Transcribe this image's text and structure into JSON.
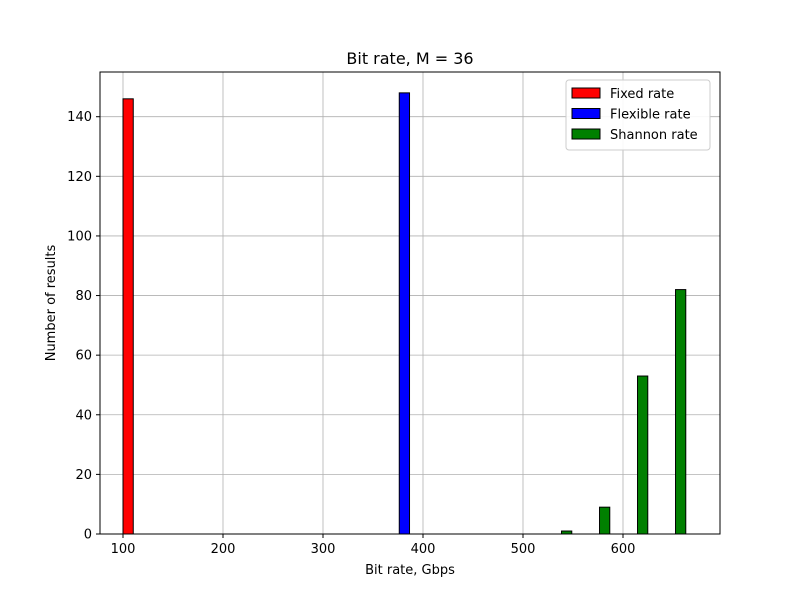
{
  "chart_data": {
    "type": "bar",
    "title": "Bit rate, M = 36",
    "xlabel": "Bit rate, Gbps",
    "ylabel": "Number of results",
    "xlim": [
      77,
      697
    ],
    "ylim": [
      0,
      155
    ],
    "xticks": [
      100,
      200,
      300,
      400,
      500,
      600
    ],
    "yticks": [
      0,
      20,
      40,
      60,
      80,
      100,
      120,
      140
    ],
    "grid": true,
    "legend_position": "top-right",
    "bin_edges": [
      100,
      138,
      176,
      214,
      252,
      290,
      328,
      366,
      404,
      442,
      480,
      518,
      556,
      594,
      632,
      670
    ],
    "bar_width_fraction": 0.27,
    "series": [
      {
        "name": "Fixed rate",
        "color": "#ff0000",
        "values": [
          146,
          0,
          0,
          0,
          0,
          0,
          0,
          0,
          0,
          0,
          0,
          0,
          0,
          0,
          0
        ]
      },
      {
        "name": "Flexible rate",
        "color": "#0000ff",
        "values": [
          0,
          0,
          0,
          0,
          0,
          0,
          0,
          148,
          0,
          0,
          0,
          0,
          0,
          0,
          0
        ]
      },
      {
        "name": "Shannon rate",
        "color": "#008000",
        "values": [
          0,
          0,
          0,
          0,
          0,
          0,
          0,
          0,
          0,
          0,
          0,
          1,
          9,
          53,
          82
        ]
      }
    ]
  }
}
